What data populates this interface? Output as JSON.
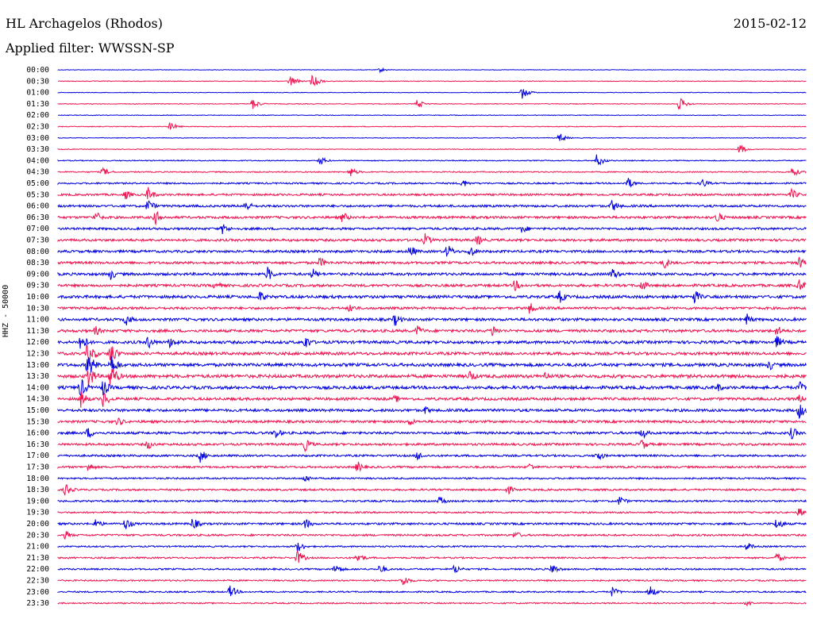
{
  "header": {
    "station": "HL Archagelos (Rhodos)",
    "date": "2015-02-12",
    "filter": "Applied filter: WWSSN-SP",
    "channel": "HHZ - 50000"
  },
  "colors": {
    "odd": "#0000e0",
    "even": "#ee1450"
  },
  "chart_data": {
    "type": "line",
    "title": "HL Archagelos (Rhodos)",
    "subtitle": "Applied filter: WWSSN-SP",
    "date": "2015-02-12",
    "ylabel": "HHZ - 50000",
    "rows": [
      {
        "time": "00:00",
        "level": 0.6,
        "events": [
          {
            "t": 0.43,
            "a": 3
          }
        ]
      },
      {
        "time": "00:30",
        "level": 0.8,
        "events": [
          {
            "t": 0.31,
            "a": 8
          },
          {
            "t": 0.34,
            "a": 9
          }
        ]
      },
      {
        "time": "01:00",
        "level": 0.7,
        "events": [
          {
            "t": 0.62,
            "a": 8
          }
        ]
      },
      {
        "time": "01:30",
        "level": 0.9,
        "events": [
          {
            "t": 0.26,
            "a": 7
          },
          {
            "t": 0.48,
            "a": 6
          },
          {
            "t": 0.83,
            "a": 9
          }
        ]
      },
      {
        "time": "02:00",
        "level": 0.8,
        "events": []
      },
      {
        "time": "02:30",
        "level": 0.9,
        "events": [
          {
            "t": 0.15,
            "a": 6
          }
        ]
      },
      {
        "time": "03:00",
        "level": 0.8,
        "events": [
          {
            "t": 0.67,
            "a": 6
          }
        ]
      },
      {
        "time": "03:30",
        "level": 0.9,
        "events": [
          {
            "t": 0.91,
            "a": 7
          }
        ]
      },
      {
        "time": "04:00",
        "level": 1.2,
        "events": [
          {
            "t": 0.35,
            "a": 6
          },
          {
            "t": 0.72,
            "a": 9
          }
        ]
      },
      {
        "time": "04:30",
        "level": 1.4,
        "events": [
          {
            "t": 0.06,
            "a": 6
          },
          {
            "t": 0.39,
            "a": 7
          },
          {
            "t": 0.98,
            "a": 8
          }
        ]
      },
      {
        "time": "05:00",
        "level": 2.0,
        "events": [
          {
            "t": 0.54,
            "a": 6
          },
          {
            "t": 0.76,
            "a": 9
          },
          {
            "t": 0.86,
            "a": 7
          }
        ]
      },
      {
        "time": "05:30",
        "level": 2.5,
        "events": [
          {
            "t": 0.09,
            "a": 7
          },
          {
            "t": 0.12,
            "a": 10
          },
          {
            "t": 0.98,
            "a": 8
          }
        ]
      },
      {
        "time": "06:00",
        "level": 2.8,
        "events": [
          {
            "t": 0.12,
            "a": 10
          },
          {
            "t": 0.25,
            "a": 9
          },
          {
            "t": 0.74,
            "a": 9
          }
        ]
      },
      {
        "time": "06:30",
        "level": 3.0,
        "events": [
          {
            "t": 0.05,
            "a": 9
          },
          {
            "t": 0.13,
            "a": 10
          },
          {
            "t": 0.38,
            "a": 8
          },
          {
            "t": 0.88,
            "a": 9
          }
        ]
      },
      {
        "time": "07:00",
        "level": 2.8,
        "events": [
          {
            "t": 0.22,
            "a": 8
          },
          {
            "t": 0.62,
            "a": 7
          }
        ]
      },
      {
        "time": "07:30",
        "level": 3.0,
        "events": [
          {
            "t": 0.49,
            "a": 9
          },
          {
            "t": 0.56,
            "a": 8
          }
        ]
      },
      {
        "time": "08:00",
        "level": 3.0,
        "events": [
          {
            "t": 0.47,
            "a": 9
          },
          {
            "t": 0.52,
            "a": 10
          },
          {
            "t": 0.55,
            "a": 9
          }
        ]
      },
      {
        "time": "08:30",
        "level": 3.0,
        "events": [
          {
            "t": 0.35,
            "a": 8
          },
          {
            "t": 0.81,
            "a": 8
          },
          {
            "t": 0.99,
            "a": 9
          }
        ]
      },
      {
        "time": "09:00",
        "level": 3.2,
        "events": [
          {
            "t": 0.07,
            "a": 8
          },
          {
            "t": 0.28,
            "a": 10
          },
          {
            "t": 0.34,
            "a": 8
          },
          {
            "t": 0.74,
            "a": 9
          }
        ]
      },
      {
        "time": "09:30",
        "level": 3.2,
        "events": [
          {
            "t": 0.21,
            "a": 7
          },
          {
            "t": 0.61,
            "a": 8
          },
          {
            "t": 0.78,
            "a": 8
          },
          {
            "t": 0.99,
            "a": 9
          }
        ]
      },
      {
        "time": "10:00",
        "level": 3.5,
        "events": [
          {
            "t": 0.27,
            "a": 8
          },
          {
            "t": 0.67,
            "a": 9
          },
          {
            "t": 0.85,
            "a": 10
          }
        ]
      },
      {
        "time": "10:30",
        "level": 3.0,
        "events": [
          {
            "t": 0.39,
            "a": 7
          },
          {
            "t": 0.63,
            "a": 8
          }
        ]
      },
      {
        "time": "11:00",
        "level": 3.3,
        "events": [
          {
            "t": 0.09,
            "a": 9
          },
          {
            "t": 0.45,
            "a": 9
          },
          {
            "t": 0.92,
            "a": 8
          }
        ]
      },
      {
        "time": "11:30",
        "level": 3.3,
        "events": [
          {
            "t": 0.05,
            "a": 7
          },
          {
            "t": 0.48,
            "a": 8
          },
          {
            "t": 0.58,
            "a": 9
          },
          {
            "t": 0.96,
            "a": 8
          }
        ]
      },
      {
        "time": "12:00",
        "level": 3.5,
        "events": [
          {
            "t": 0.03,
            "a": 14
          },
          {
            "t": 0.12,
            "a": 10
          },
          {
            "t": 0.15,
            "a": 9
          },
          {
            "t": 0.33,
            "a": 10
          },
          {
            "t": 0.96,
            "a": 9
          }
        ]
      },
      {
        "time": "12:30",
        "level": 3.5,
        "events": [
          {
            "t": 0.04,
            "a": 18
          },
          {
            "t": 0.07,
            "a": 16
          }
        ]
      },
      {
        "time": "13:00",
        "level": 3.8,
        "events": [
          {
            "t": 0.04,
            "a": 18
          },
          {
            "t": 0.07,
            "a": 18
          },
          {
            "t": 0.95,
            "a": 8
          }
        ]
      },
      {
        "time": "13:30",
        "level": 4.0,
        "events": [
          {
            "t": 0.04,
            "a": 18
          },
          {
            "t": 0.07,
            "a": 18
          },
          {
            "t": 0.55,
            "a": 9
          },
          {
            "t": 0.65,
            "a": 7
          }
        ]
      },
      {
        "time": "14:00",
        "level": 3.8,
        "events": [
          {
            "t": 0.03,
            "a": 14
          },
          {
            "t": 0.06,
            "a": 12
          },
          {
            "t": 0.88,
            "a": 7
          },
          {
            "t": 0.99,
            "a": 9
          }
        ]
      },
      {
        "time": "14:30",
        "level": 3.3,
        "events": [
          {
            "t": 0.03,
            "a": 12
          },
          {
            "t": 0.06,
            "a": 12
          },
          {
            "t": 0.45,
            "a": 6
          },
          {
            "t": 0.99,
            "a": 6
          }
        ]
      },
      {
        "time": "15:00",
        "level": 3.3,
        "events": [
          {
            "t": 0.49,
            "a": 6
          },
          {
            "t": 0.99,
            "a": 12
          }
        ]
      },
      {
        "time": "15:30",
        "level": 3.0,
        "events": [
          {
            "t": 0.08,
            "a": 7
          },
          {
            "t": 0.47,
            "a": 6
          }
        ]
      },
      {
        "time": "16:00",
        "level": 3.0,
        "events": [
          {
            "t": 0.04,
            "a": 8
          },
          {
            "t": 0.29,
            "a": 8
          },
          {
            "t": 0.78,
            "a": 8
          },
          {
            "t": 0.98,
            "a": 9
          }
        ]
      },
      {
        "time": "16:30",
        "level": 2.8,
        "events": [
          {
            "t": 0.12,
            "a": 7
          },
          {
            "t": 0.33,
            "a": 9
          },
          {
            "t": 0.78,
            "a": 8
          }
        ]
      },
      {
        "time": "17:00",
        "level": 2.5,
        "events": [
          {
            "t": 0.19,
            "a": 9
          },
          {
            "t": 0.48,
            "a": 7
          },
          {
            "t": 0.72,
            "a": 8
          }
        ]
      },
      {
        "time": "17:30",
        "level": 2.5,
        "events": [
          {
            "t": 0.04,
            "a": 7
          },
          {
            "t": 0.4,
            "a": 8
          },
          {
            "t": 0.63,
            "a": 6
          }
        ]
      },
      {
        "time": "18:00",
        "level": 2.0,
        "events": [
          {
            "t": 0.33,
            "a": 6
          }
        ]
      },
      {
        "time": "18:30",
        "level": 2.3,
        "events": [
          {
            "t": 0.01,
            "a": 9
          },
          {
            "t": 0.6,
            "a": 7
          }
        ]
      },
      {
        "time": "19:00",
        "level": 2.2,
        "events": [
          {
            "t": 0.51,
            "a": 7
          },
          {
            "t": 0.75,
            "a": 7
          }
        ]
      },
      {
        "time": "19:30",
        "level": 2.0,
        "events": [
          {
            "t": 0.99,
            "a": 7
          }
        ]
      },
      {
        "time": "20:00",
        "level": 2.5,
        "events": [
          {
            "t": 0.05,
            "a": 7
          },
          {
            "t": 0.09,
            "a": 9
          },
          {
            "t": 0.18,
            "a": 9
          },
          {
            "t": 0.33,
            "a": 8
          },
          {
            "t": 0.96,
            "a": 9
          }
        ]
      },
      {
        "time": "20:30",
        "level": 2.3,
        "events": [
          {
            "t": 0.01,
            "a": 6
          },
          {
            "t": 0.61,
            "a": 6
          }
        ]
      },
      {
        "time": "21:00",
        "level": 1.8,
        "events": [
          {
            "t": 0.32,
            "a": 8
          },
          {
            "t": 0.92,
            "a": 6
          }
        ]
      },
      {
        "time": "21:30",
        "level": 2.0,
        "events": [
          {
            "t": 0.32,
            "a": 10
          },
          {
            "t": 0.4,
            "a": 8
          },
          {
            "t": 0.96,
            "a": 7
          }
        ]
      },
      {
        "time": "22:00",
        "level": 2.0,
        "events": [
          {
            "t": 0.37,
            "a": 8
          },
          {
            "t": 0.43,
            "a": 7
          },
          {
            "t": 0.53,
            "a": 7
          },
          {
            "t": 0.66,
            "a": 8
          }
        ]
      },
      {
        "time": "22:30",
        "level": 1.8,
        "events": [
          {
            "t": 0.46,
            "a": 9
          }
        ]
      },
      {
        "time": "23:00",
        "level": 1.8,
        "events": [
          {
            "t": 0.23,
            "a": 9
          },
          {
            "t": 0.74,
            "a": 7
          },
          {
            "t": 0.79,
            "a": 9
          }
        ]
      },
      {
        "time": "23:30",
        "level": 1.6,
        "events": [
          {
            "t": 0.92,
            "a": 5
          }
        ]
      }
    ]
  }
}
